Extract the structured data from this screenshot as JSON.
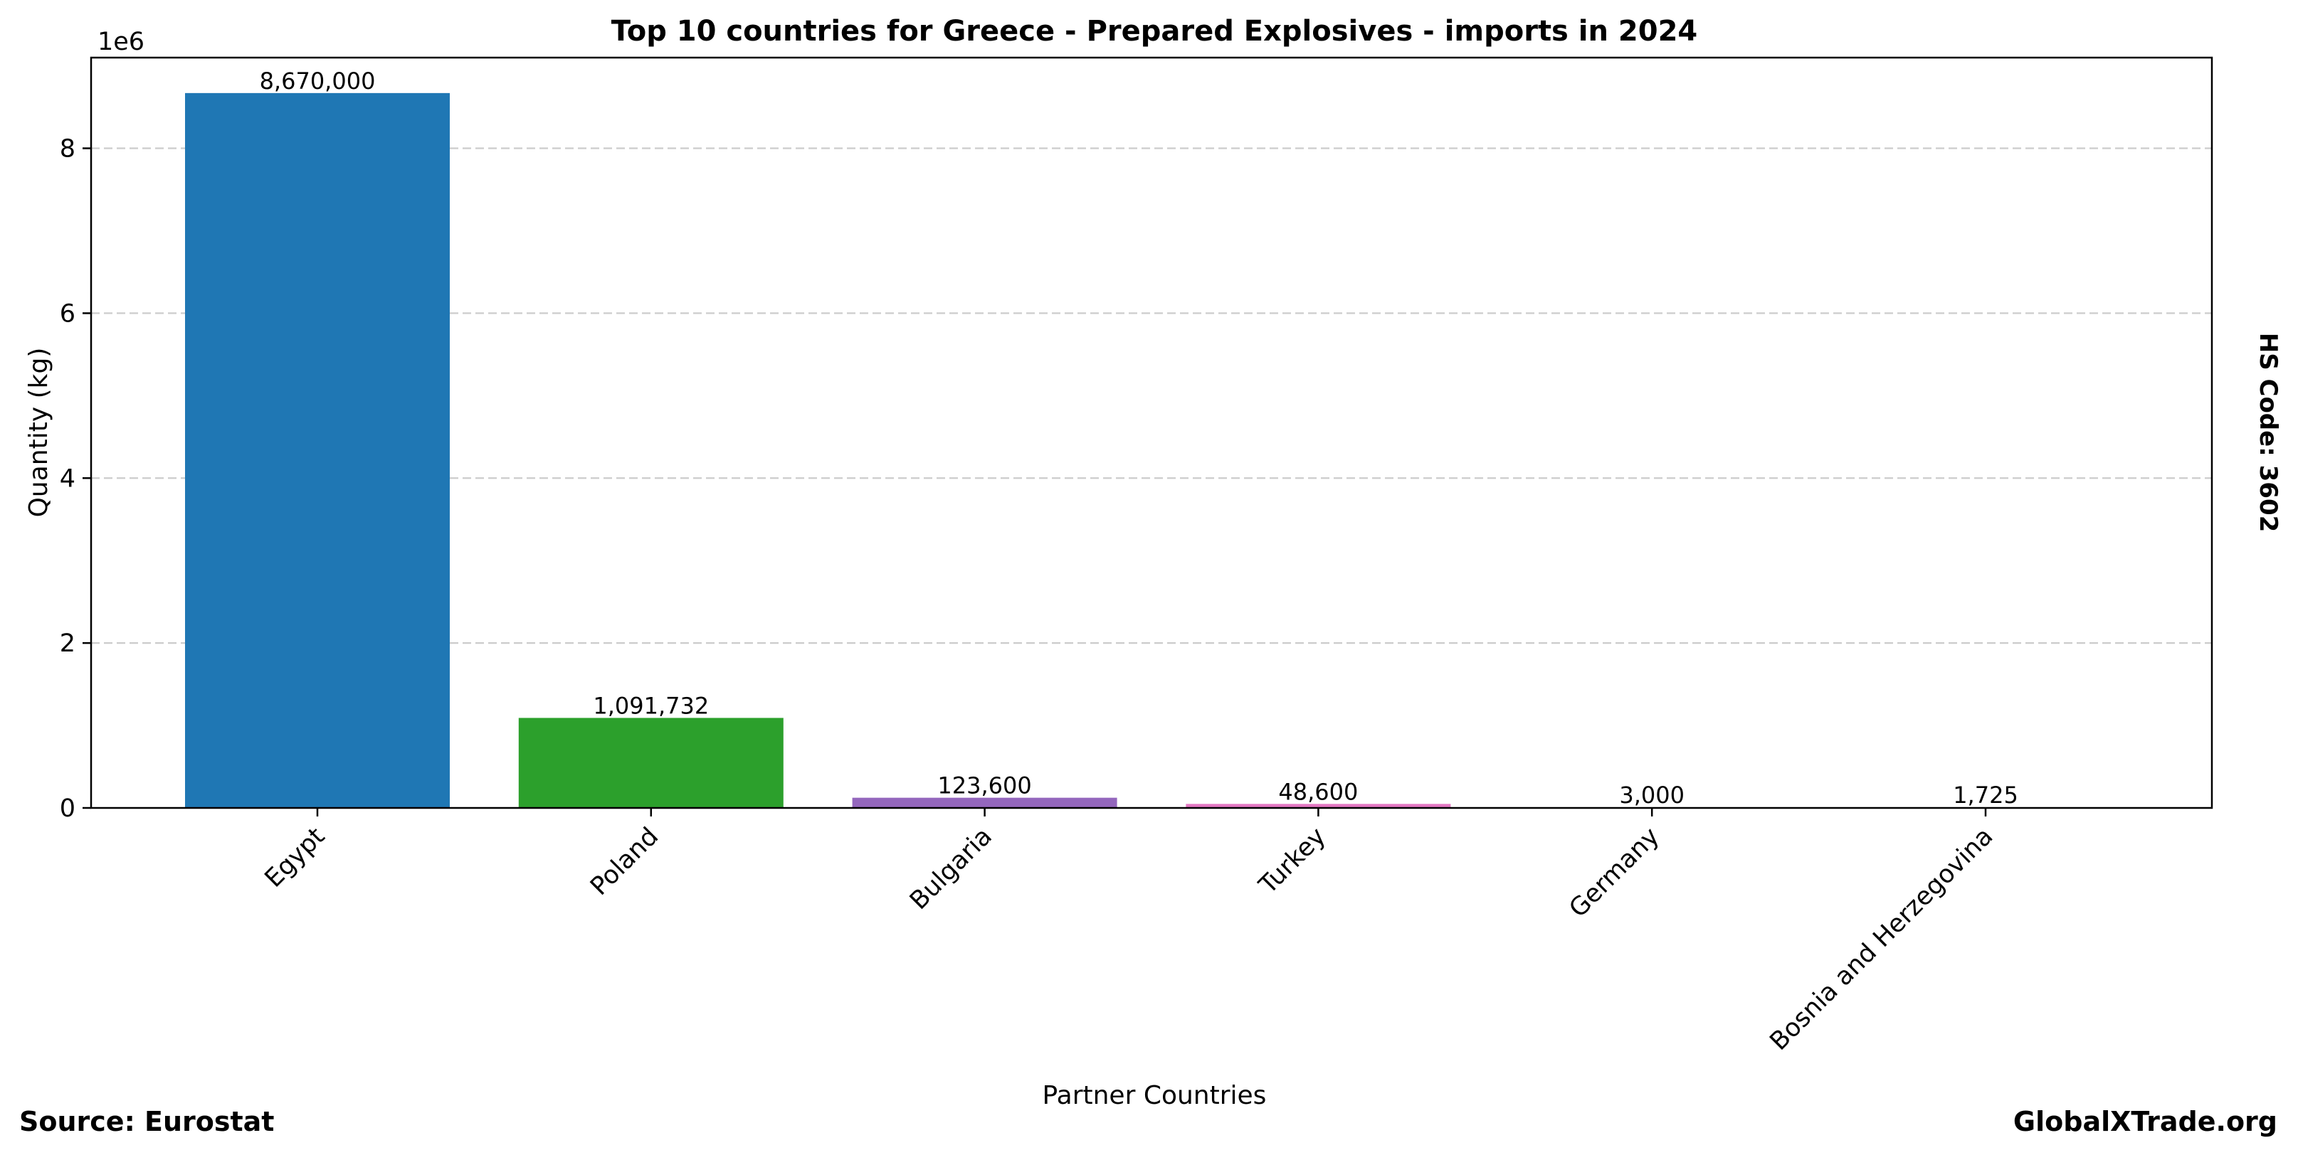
{
  "chart_data": {
    "type": "bar",
    "title": "Top 10 countries for Greece - Prepared Explosives - imports in 2024",
    "xlabel": "Partner Countries",
    "ylabel": "Quantity (kg)",
    "y_scale_label": "1e6",
    "y_scale": 1000000,
    "ylim": [
      0,
      9100000
    ],
    "yticks": [
      0,
      2000000,
      4000000,
      6000000,
      8000000
    ],
    "ytick_labels": [
      "0",
      "2",
      "4",
      "6",
      "8"
    ],
    "grid": true,
    "categories": [
      "Egypt",
      "Poland",
      "Bulgaria",
      "Turkey",
      "Germany",
      "Bosnia and Herzegovina"
    ],
    "values": [
      8670000,
      1091732,
      123600,
      48600,
      3000,
      1725
    ],
    "value_labels": [
      "8,670,000",
      "1,091,732",
      "123,600",
      "48,600",
      "3,000",
      "1,725"
    ],
    "colors": [
      "#1f77b4",
      "#2ca02c",
      "#9467bd",
      "#e377c2",
      "#bcbd22",
      "#1f77b4"
    ],
    "grid_color": "#cccccc"
  },
  "footer": {
    "source": "Source: Eurostat",
    "brand": "GlobalXTrade.org",
    "hs_code": "HS Code: 3602"
  }
}
